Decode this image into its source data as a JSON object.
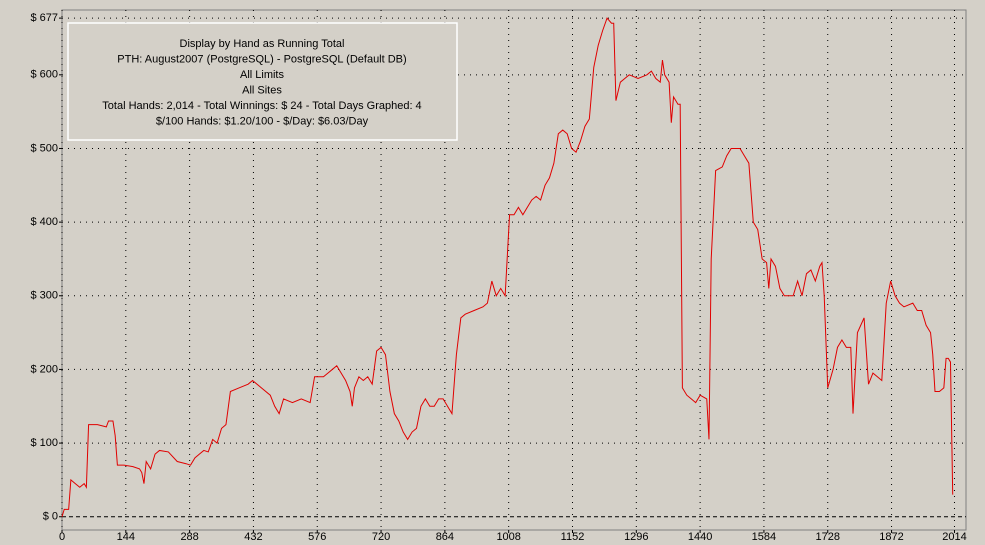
{
  "chart_data": {
    "type": "line",
    "annotations": [
      "Display by Hand as Running Total",
      "PTH: August2007 (PostgreSQL) - PostgreSQL (Default DB)",
      "All Limits",
      "All Sites",
      "Total Hands: 2,014 - Total Winnings: $ 24 - Total Days Graphed: 4",
      "$/100 Hands: $1.20/100 - $/Day: $6.03/Day"
    ],
    "xlim": [
      0,
      2040
    ],
    "ylim": [
      -18,
      688
    ],
    "xticks": [
      0,
      144,
      288,
      432,
      576,
      720,
      864,
      1008,
      1152,
      1296,
      1440,
      1584,
      1728,
      1872,
      2014
    ],
    "yticks": [
      {
        "value": 0,
        "label": "$ 0"
      },
      {
        "value": 100,
        "label": "$ 100"
      },
      {
        "value": 200,
        "label": "$ 200"
      },
      {
        "value": 300,
        "label": "$ 300"
      },
      {
        "value": 400,
        "label": "$ 400"
      },
      {
        "value": 500,
        "label": "$ 500"
      },
      {
        "value": 600,
        "label": "$ 600"
      },
      {
        "value": 677,
        "label": "$ 677"
      }
    ],
    "grid": true,
    "series": [
      {
        "color": "#e00000",
        "x": [
          0,
          5,
          15,
          20,
          30,
          40,
          50,
          55,
          60,
          80,
          100,
          105,
          115,
          120,
          125,
          140,
          160,
          175,
          180,
          185,
          190,
          200,
          210,
          220,
          240,
          260,
          280,
          290,
          300,
          310,
          320,
          330,
          340,
          350,
          360,
          370,
          380,
          400,
          420,
          430,
          450,
          470,
          480,
          490,
          500,
          520,
          540,
          560,
          570,
          590,
          600,
          610,
          620,
          630,
          640,
          650,
          655,
          660,
          670,
          680,
          690,
          700,
          710,
          720,
          730,
          740,
          750,
          760,
          770,
          780,
          790,
          800,
          810,
          820,
          830,
          840,
          850,
          860,
          870,
          880,
          890,
          900,
          910,
          930,
          950,
          960,
          970,
          980,
          990,
          1000,
          1010,
          1020,
          1030,
          1040,
          1050,
          1060,
          1070,
          1080,
          1090,
          1100,
          1110,
          1120,
          1130,
          1140,
          1150,
          1160,
          1170,
          1180,
          1190,
          1200,
          1210,
          1220,
          1230,
          1240,
          1245,
          1250,
          1260,
          1270,
          1280,
          1300,
          1320,
          1330,
          1340,
          1350,
          1355,
          1360,
          1370,
          1375,
          1380,
          1390,
          1395,
          1400,
          1410,
          1420,
          1430,
          1440,
          1455,
          1460,
          1465,
          1475,
          1490,
          1500,
          1510,
          1530,
          1540,
          1550,
          1560,
          1570,
          1580,
          1590,
          1595,
          1600,
          1610,
          1620,
          1630,
          1650,
          1660,
          1670,
          1680,
          1690,
          1700,
          1710,
          1715,
          1720,
          1728,
          1740,
          1750,
          1760,
          1770,
          1780,
          1785,
          1795,
          1810,
          1820,
          1830,
          1840,
          1850,
          1860,
          1870,
          1880,
          1890,
          1900,
          1920,
          1930,
          1940,
          1950,
          1960,
          1965,
          1970,
          1980,
          1990,
          1995,
          2000,
          2005,
          2010
        ],
        "values": [
          0,
          10,
          10,
          50,
          45,
          40,
          45,
          40,
          125,
          125,
          122,
          130,
          130,
          110,
          70,
          70,
          68,
          65,
          60,
          45,
          75,
          65,
          85,
          90,
          88,
          75,
          72,
          70,
          80,
          85,
          90,
          88,
          105,
          100,
          120,
          125,
          170,
          175,
          180,
          185,
          175,
          165,
          150,
          140,
          160,
          155,
          160,
          155,
          190,
          190,
          195,
          200,
          205,
          195,
          185,
          170,
          150,
          175,
          190,
          185,
          190,
          180,
          225,
          230,
          220,
          170,
          140,
          130,
          115,
          105,
          115,
          120,
          150,
          160,
          150,
          150,
          160,
          160,
          150,
          140,
          220,
          270,
          275,
          280,
          285,
          290,
          320,
          300,
          310,
          300,
          410,
          410,
          420,
          410,
          420,
          430,
          435,
          430,
          450,
          460,
          480,
          520,
          525,
          520,
          500,
          495,
          510,
          530,
          540,
          610,
          640,
          660,
          677,
          670,
          670,
          565,
          590,
          595,
          600,
          595,
          600,
          605,
          595,
          590,
          620,
          600,
          590,
          535,
          570,
          560,
          560,
          175,
          165,
          160,
          155,
          165,
          160,
          105,
          350,
          470,
          475,
          490,
          500,
          500,
          490,
          480,
          400,
          390,
          350,
          345,
          310,
          350,
          340,
          310,
          300,
          300,
          320,
          300,
          330,
          335,
          320,
          340,
          345,
          300,
          175,
          200,
          230,
          240,
          230,
          230,
          140,
          250,
          270,
          180,
          195,
          190,
          185,
          290,
          320,
          300,
          290,
          285,
          290,
          280,
          280,
          260,
          250,
          220,
          170,
          170,
          175,
          215,
          215,
          210,
          30
        ]
      }
    ]
  }
}
